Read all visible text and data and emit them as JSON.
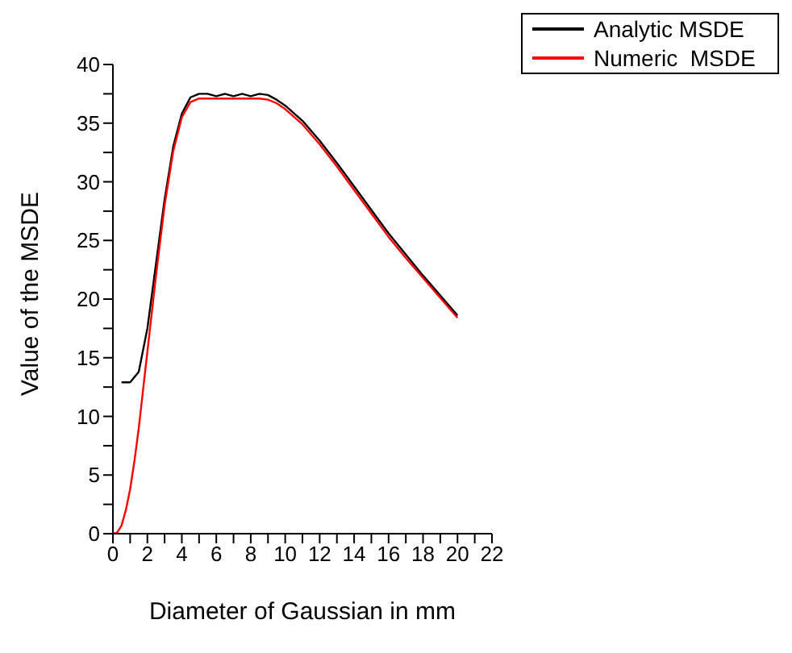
{
  "chart_data": {
    "type": "line",
    "xlabel": "Diameter of  Gaussian in mm",
    "ylabel": "Value of the MSDE",
    "xlim": [
      0,
      22
    ],
    "ylim": [
      0,
      40
    ],
    "xticks": [
      0,
      {
        "value": 1,
        "label": null
      },
      2,
      {
        "value": 3,
        "label": null
      },
      4,
      {
        "value": 5,
        "label": null
      },
      6,
      {
        "value": 7,
        "label": null
      },
      8,
      {
        "value": 9,
        "label": null
      },
      10,
      {
        "value": 11,
        "label": null
      },
      12,
      {
        "value": 13,
        "label": null
      },
      14,
      {
        "value": 15,
        "label": null
      },
      16,
      {
        "value": 17,
        "label": null
      },
      18,
      {
        "value": 19,
        "label": null
      },
      20,
      {
        "value": 21,
        "label": null
      },
      22
    ],
    "yticks": [
      0,
      {
        "value": 2.5,
        "label": null
      },
      5,
      {
        "value": 7.5,
        "label": null
      },
      10,
      {
        "value": 12.5,
        "label": null
      },
      15,
      {
        "value": 17.5,
        "label": null
      },
      20,
      {
        "value": 22.5,
        "label": null
      },
      25,
      {
        "value": 27.5,
        "label": null
      },
      30,
      {
        "value": 32.5,
        "label": null
      },
      35,
      {
        "value": 37.5,
        "label": null
      },
      40
    ],
    "grid": false,
    "legend": "top right",
    "marker": "none",
    "line_style": "solid",
    "series": [
      {
        "name": "Analytic MSDE",
        "color": "#000000",
        "x": [
          0.5,
          1,
          1.5,
          2,
          2.5,
          3,
          3.5,
          4,
          4.5,
          5,
          5.5,
          6,
          6.5,
          7,
          7.5,
          8,
          8.5,
          9,
          9.5,
          10,
          11,
          12,
          13,
          14,
          15,
          16,
          17,
          18,
          19,
          20
        ],
        "values": [
          12.9,
          12.9,
          13.8,
          17.5,
          23,
          28.5,
          33,
          35.8,
          37.2,
          37.5,
          37.5,
          37.3,
          37.5,
          37.3,
          37.5,
          37.3,
          37.5,
          37.4,
          37,
          36.5,
          35.2,
          33.5,
          31.6,
          29.6,
          27.6,
          25.6,
          23.8,
          22,
          20.3,
          18.6
        ]
      },
      {
        "name": "Numeric  MSDE",
        "color": "#ff0000",
        "x": [
          0,
          0.25,
          0.5,
          0.75,
          1,
          1.25,
          1.5,
          2,
          2.5,
          3,
          3.5,
          4,
          4.5,
          5,
          6,
          7,
          8,
          8.5,
          9,
          9.5,
          10,
          11,
          12,
          13,
          14,
          15,
          16,
          17,
          18,
          19,
          20
        ],
        "values": [
          0,
          0.1,
          0.7,
          2,
          3.8,
          6.2,
          9,
          15.5,
          22,
          28,
          32.6,
          35.5,
          36.8,
          37.1,
          37.1,
          37.1,
          37.1,
          37.1,
          37,
          36.7,
          36.2,
          34.9,
          33.2,
          31.3,
          29.3,
          27.3,
          25.3,
          23.5,
          21.8,
          20.1,
          18.4
        ]
      }
    ]
  }
}
